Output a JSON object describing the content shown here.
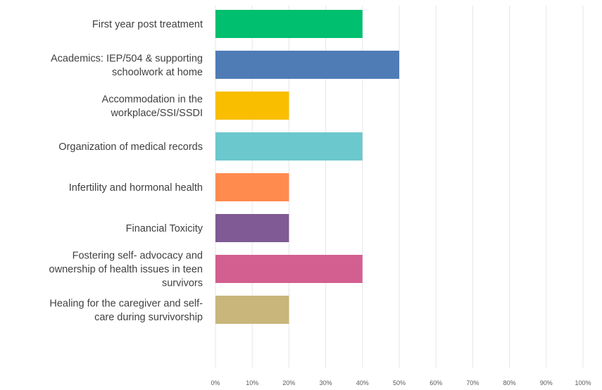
{
  "chart_data": {
    "type": "bar",
    "orientation": "horizontal",
    "title": "",
    "xlabel": "",
    "ylabel": "",
    "xlim": [
      0,
      100
    ],
    "grid": true,
    "legend": "none",
    "categories": [
      [
        "First year post treatment"
      ],
      [
        "Academics: IEP/504 & supporting",
        "schoolwork at home"
      ],
      [
        "Accommodation in the",
        "workplace/SSI/SSDI"
      ],
      [
        "Organization of medical records"
      ],
      [
        "Infertility and hormonal health"
      ],
      [
        "Financial Toxicity"
      ],
      [
        "Fostering self- advocacy and",
        "ownership of health issues in teen",
        "survivors"
      ],
      [
        "Healing for the caregiver and self-",
        "care during survivorship"
      ]
    ],
    "values": [
      40,
      50,
      20,
      40,
      20,
      20,
      40,
      20
    ],
    "colors": [
      "#00bf6f",
      "#507cb6",
      "#f9be00",
      "#6bc8cd",
      "#ff8b4f",
      "#7f5a95",
      "#d25f90",
      "#c8b67b"
    ],
    "ticks": [
      "0%",
      "10%",
      "20%",
      "30%",
      "40%",
      "50%",
      "60%",
      "70%",
      "80%",
      "90%",
      "100%"
    ]
  }
}
